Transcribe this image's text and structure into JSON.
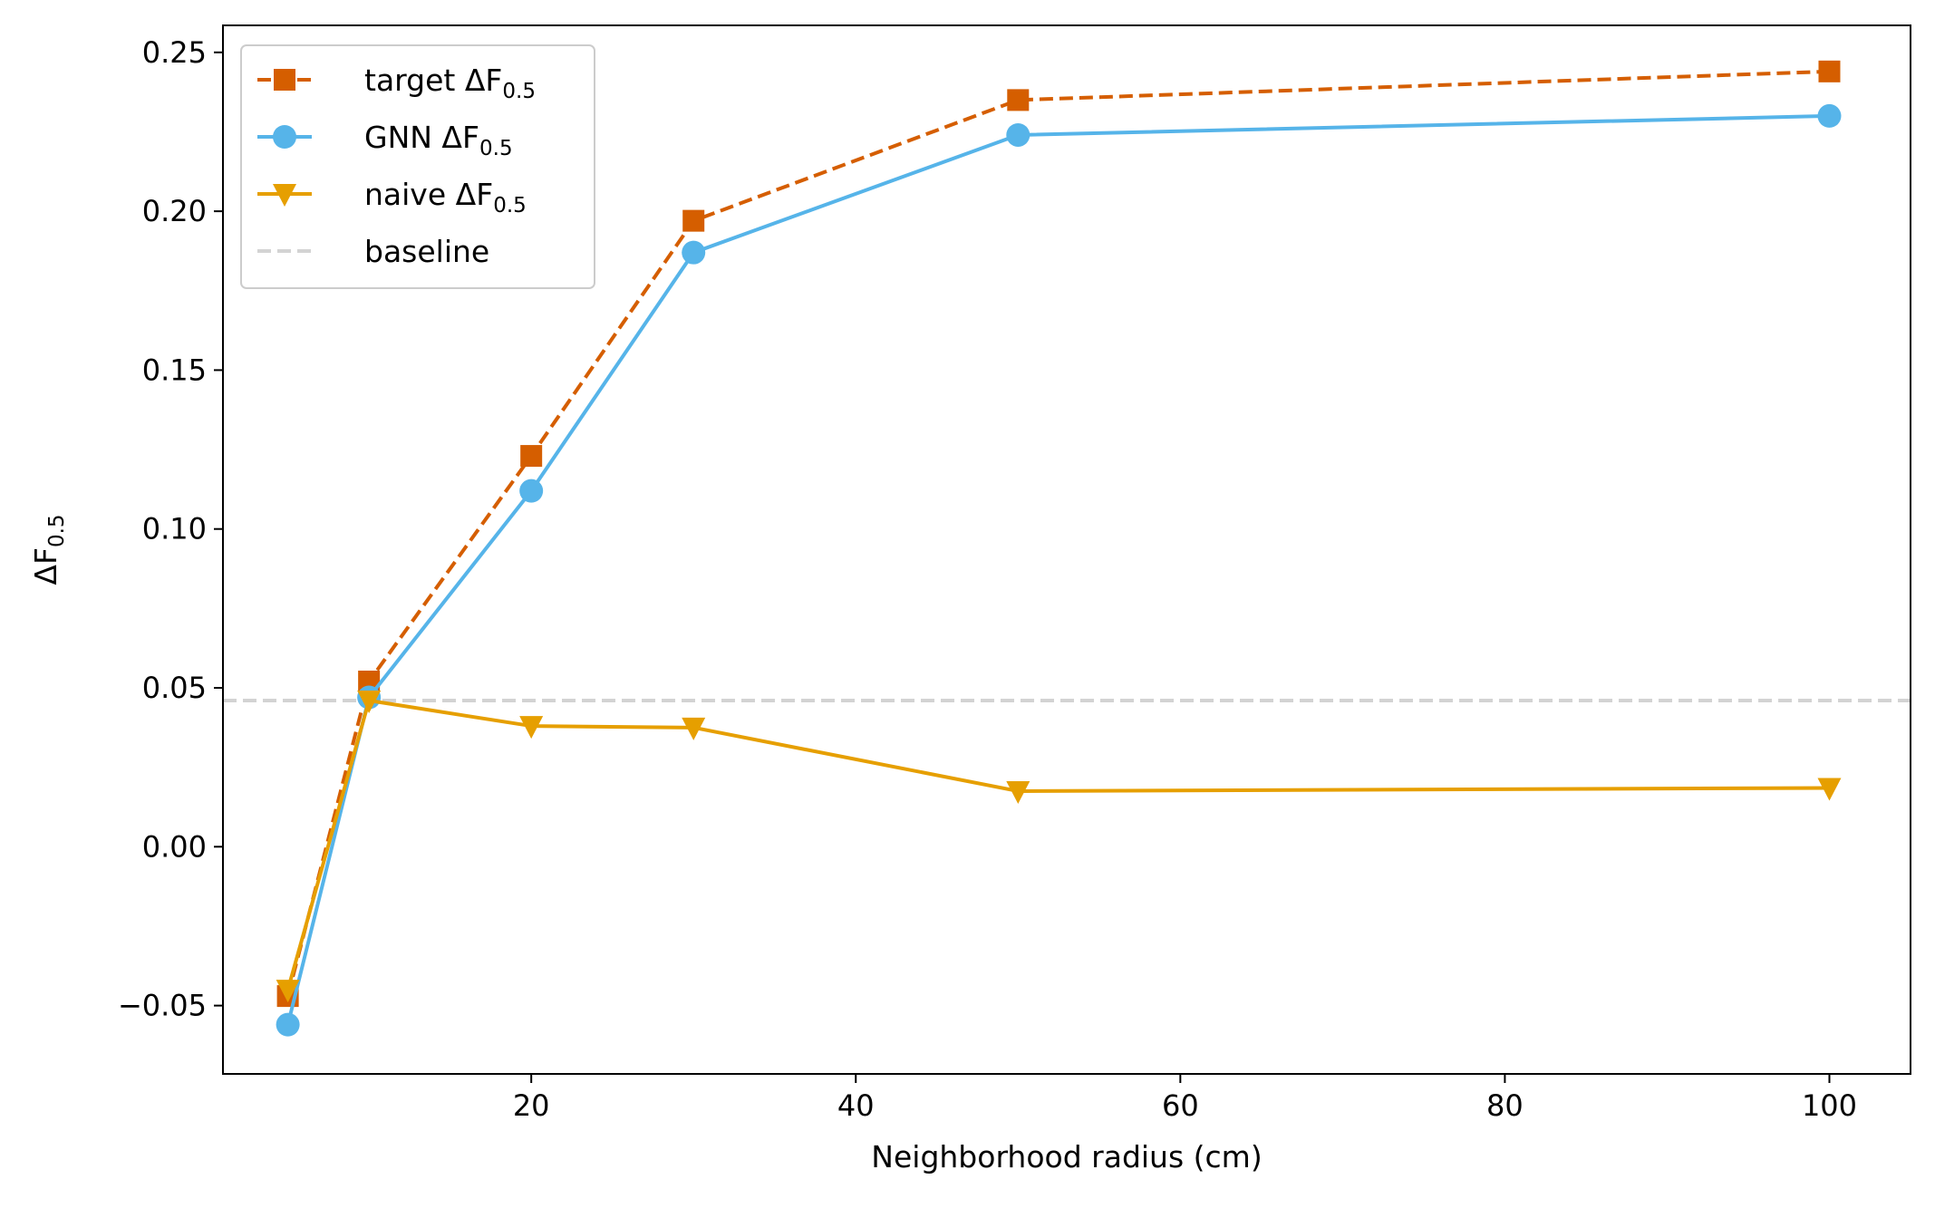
{
  "chart_data": {
    "type": "line",
    "title": "",
    "xlabel": "Neighborhood radius (cm)",
    "ylabel": {
      "base": "ΔF",
      "sub": "0.5"
    },
    "xlim": [
      1,
      105
    ],
    "ylim": [
      -0.0715,
      0.2585
    ],
    "xticks": [
      20,
      40,
      60,
      80,
      100
    ],
    "xtick_labels": [
      "20",
      "40",
      "60",
      "80",
      "100"
    ],
    "yticks": [
      -0.05,
      0.0,
      0.05,
      0.1,
      0.15,
      0.2,
      0.25
    ],
    "ytick_labels": [
      "−0.05",
      "0.00",
      "0.05",
      "0.10",
      "0.15",
      "0.20",
      "0.25"
    ],
    "grid": false,
    "legend_position": "upper left",
    "x": [
      5,
      10,
      20,
      30,
      50,
      100
    ],
    "series": [
      {
        "name": "target ΔF",
        "name_sub": "0.5",
        "values": [
          -0.047,
          0.052,
          0.123,
          0.197,
          0.235,
          0.244
        ],
        "color": "#d55e00",
        "marker": "square",
        "linestyle": "dashed"
      },
      {
        "name": "GNN ΔF",
        "name_sub": "0.5",
        "values": [
          -0.056,
          0.047,
          0.112,
          0.187,
          0.224,
          0.23
        ],
        "color": "#56b4e9",
        "marker": "circle",
        "linestyle": "solid"
      },
      {
        "name": "naive ΔF",
        "name_sub": "0.5",
        "values": [
          -0.045,
          0.046,
          0.038,
          0.0375,
          0.0175,
          0.0185
        ],
        "color": "#e69f00",
        "marker": "triangle-down",
        "linestyle": "solid"
      }
    ],
    "baseline": {
      "name": "baseline",
      "value": 0.046,
      "color": "#d3d3d3",
      "linestyle": "dashed"
    }
  }
}
